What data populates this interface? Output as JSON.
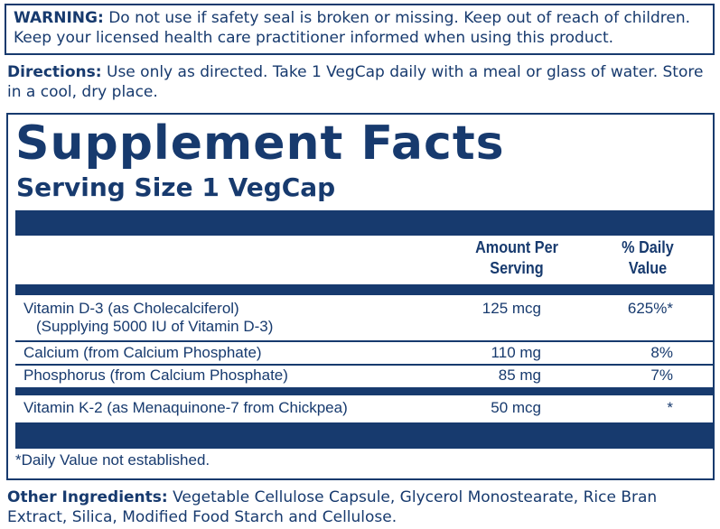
{
  "warning": {
    "label": "WARNING:",
    "text": "Do not use if safety seal is broken or missing. Keep out of reach of children. Keep your licensed health care practitioner informed when using this product."
  },
  "directions": {
    "label": "Directions:",
    "text": "Use only as directed. Take 1 VegCap daily with a meal or glass of water. Store in a cool, dry place."
  },
  "facts": {
    "title": "Supplement Facts",
    "serving_size": "Serving Size 1 VegCap",
    "amount_header": "Amount Per Serving",
    "dv_header": "% Daily Value",
    "rows": [
      {
        "name": "Vitamin D-3 (as Cholecalciferol)",
        "detail": "(Supplying 5000 IU of Vitamin D-3)",
        "amount": "125 mcg",
        "dv": "625%*"
      },
      {
        "name": "Calcium (from Calcium Phosphate)",
        "amount": "110 mg",
        "dv": "8%"
      },
      {
        "name": "Phosphorus (from Calcium Phosphate)",
        "amount": "85 mg",
        "dv": "7%"
      },
      {
        "name": "Vitamin K-2 (as Menaquinone-7 from Chickpea)",
        "amount": "50 mcg",
        "dv": "*"
      }
    ],
    "footnote": "*Daily Value not established."
  },
  "other_ingredients": {
    "label": "Other Ingredients:",
    "text": "Vegetable Cellulose Capsule, Glycerol Monostearate, Rice Bran Extract, Silica, Modified Food Starch and Cellulose."
  }
}
